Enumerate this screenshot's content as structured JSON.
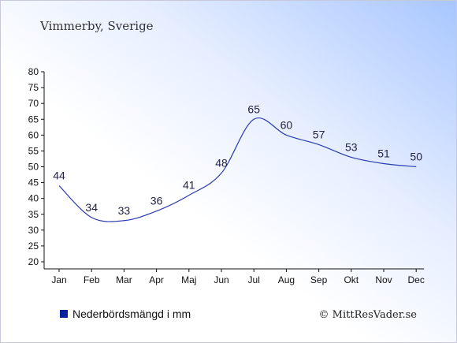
{
  "title": "Vimmerby, Sverige",
  "legend": {
    "label": "Nederbördsmängd i mm",
    "color": "#0a1f9c"
  },
  "credit": "© MittResVader.se",
  "chart_data": {
    "type": "line",
    "categories": [
      "Jan",
      "Feb",
      "Mar",
      "Apr",
      "Maj",
      "Jun",
      "Jul",
      "Aug",
      "Sep",
      "Okt",
      "Nov",
      "Dec"
    ],
    "series": [
      {
        "name": "Nederbördsmängd i mm",
        "values": [
          44,
          34,
          33,
          36,
          41,
          48,
          65,
          60,
          57,
          53,
          51,
          50
        ],
        "color": "#2a3ab0"
      }
    ],
    "ylim": [
      20,
      80
    ],
    "yticks": [
      20,
      25,
      30,
      35,
      40,
      45,
      50,
      55,
      60,
      65,
      70,
      75,
      80
    ],
    "grid": false,
    "legend_position": "bottom-left"
  }
}
